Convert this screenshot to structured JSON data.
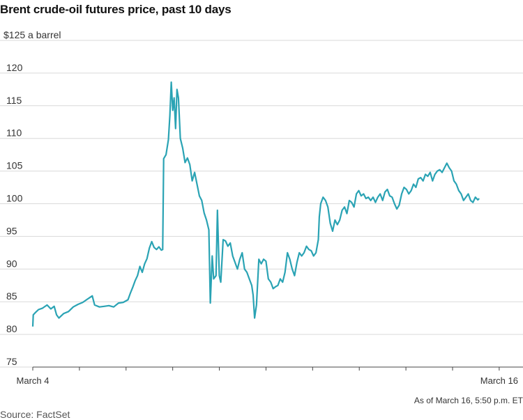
{
  "chart_data": {
    "type": "line",
    "title": "Brent crude-oil futures price, past 10 days",
    "ylabel": "$125 a barrel",
    "ylim": [
      75,
      125
    ],
    "yticks": [
      75,
      80,
      85,
      90,
      95,
      100,
      105,
      110,
      115,
      120
    ],
    "xlim": [
      0,
      10.3
    ],
    "xtick_labels": [
      {
        "x": 0,
        "label": "March 4"
      },
      {
        "x": 9.8,
        "label": "March 16"
      }
    ],
    "grid": true,
    "colors": {
      "line": "#2aa3b4",
      "grid": "#d9d9d9"
    },
    "series": [
      {
        "points": [
          [
            0.0,
            81.2
          ],
          [
            0.01,
            83.0
          ],
          [
            0.05,
            83.3
          ],
          [
            0.12,
            83.8
          ],
          [
            0.2,
            84.0
          ],
          [
            0.3,
            84.5
          ],
          [
            0.38,
            83.9
          ],
          [
            0.45,
            84.3
          ],
          [
            0.5,
            83.0
          ],
          [
            0.55,
            82.5
          ],
          [
            0.65,
            83.2
          ],
          [
            0.75,
            83.5
          ],
          [
            0.85,
            84.2
          ],
          [
            0.95,
            84.6
          ],
          [
            1.05,
            84.9
          ],
          [
            1.15,
            85.4
          ],
          [
            1.25,
            85.9
          ],
          [
            1.3,
            84.5
          ],
          [
            1.4,
            84.2
          ],
          [
            1.5,
            84.3
          ],
          [
            1.6,
            84.4
          ],
          [
            1.7,
            84.2
          ],
          [
            1.8,
            84.8
          ],
          [
            1.9,
            84.9
          ],
          [
            2.0,
            85.3
          ],
          [
            2.05,
            86.3
          ],
          [
            2.1,
            87.2
          ],
          [
            2.15,
            88.2
          ],
          [
            2.2,
            89.0
          ],
          [
            2.25,
            90.4
          ],
          [
            2.3,
            89.5
          ],
          [
            2.35,
            90.8
          ],
          [
            2.4,
            91.6
          ],
          [
            2.45,
            93.2
          ],
          [
            2.5,
            94.2
          ],
          [
            2.55,
            93.3
          ],
          [
            2.6,
            93.0
          ],
          [
            2.65,
            93.4
          ],
          [
            2.7,
            92.9
          ],
          [
            2.73,
            93.0
          ],
          [
            2.75,
            106.9
          ],
          [
            2.8,
            107.5
          ],
          [
            2.85,
            109.8
          ],
          [
            2.88,
            113.5
          ],
          [
            2.91,
            118.6
          ],
          [
            2.94,
            114.3
          ],
          [
            2.97,
            116.2
          ],
          [
            3.0,
            111.5
          ],
          [
            3.03,
            117.5
          ],
          [
            3.06,
            116.2
          ],
          [
            3.1,
            110.0
          ],
          [
            3.15,
            108.5
          ],
          [
            3.2,
            106.3
          ],
          [
            3.25,
            107.0
          ],
          [
            3.3,
            106.0
          ],
          [
            3.35,
            103.5
          ],
          [
            3.4,
            104.8
          ],
          [
            3.45,
            103.0
          ],
          [
            3.5,
            101.2
          ],
          [
            3.55,
            100.5
          ],
          [
            3.6,
            98.6
          ],
          [
            3.65,
            97.5
          ],
          [
            3.7,
            96.0
          ],
          [
            3.73,
            84.8
          ],
          [
            3.77,
            92.0
          ],
          [
            3.8,
            88.5
          ],
          [
            3.85,
            89.0
          ],
          [
            3.88,
            99.0
          ],
          [
            3.92,
            89.0
          ],
          [
            3.95,
            88.0
          ],
          [
            4.0,
            94.5
          ],
          [
            4.05,
            94.3
          ],
          [
            4.1,
            93.5
          ],
          [
            4.15,
            94.0
          ],
          [
            4.2,
            92.0
          ],
          [
            4.25,
            91.0
          ],
          [
            4.3,
            90.0
          ],
          [
            4.35,
            91.5
          ],
          [
            4.4,
            92.5
          ],
          [
            4.45,
            90.0
          ],
          [
            4.5,
            89.5
          ],
          [
            4.55,
            88.5
          ],
          [
            4.6,
            87.5
          ],
          [
            4.63,
            86.0
          ],
          [
            4.66,
            82.5
          ],
          [
            4.7,
            84.5
          ],
          [
            4.75,
            91.5
          ],
          [
            4.8,
            90.8
          ],
          [
            4.85,
            91.5
          ],
          [
            4.9,
            91.2
          ],
          [
            4.95,
            88.5
          ],
          [
            5.0,
            88.0
          ],
          [
            5.05,
            87.0
          ],
          [
            5.1,
            87.3
          ],
          [
            5.15,
            87.5
          ],
          [
            5.2,
            88.5
          ],
          [
            5.25,
            88.0
          ],
          [
            5.3,
            89.5
          ],
          [
            5.35,
            92.5
          ],
          [
            5.4,
            91.5
          ],
          [
            5.45,
            90.0
          ],
          [
            5.5,
            89.0
          ],
          [
            5.55,
            91.0
          ],
          [
            5.6,
            92.5
          ],
          [
            5.65,
            92.0
          ],
          [
            5.7,
            92.5
          ],
          [
            5.75,
            93.5
          ],
          [
            5.8,
            93.0
          ],
          [
            5.85,
            92.8
          ],
          [
            5.9,
            92.0
          ],
          [
            5.95,
            92.5
          ],
          [
            6.0,
            94.5
          ],
          [
            6.02,
            98.0
          ],
          [
            6.05,
            100.0
          ],
          [
            6.1,
            101.0
          ],
          [
            6.15,
            100.5
          ],
          [
            6.2,
            99.5
          ],
          [
            6.25,
            97.0
          ],
          [
            6.3,
            95.8
          ],
          [
            6.35,
            97.5
          ],
          [
            6.4,
            96.8
          ],
          [
            6.45,
            97.5
          ],
          [
            6.5,
            99.0
          ],
          [
            6.55,
            99.5
          ],
          [
            6.6,
            98.5
          ],
          [
            6.65,
            100.5
          ],
          [
            6.7,
            100.2
          ],
          [
            6.75,
            99.5
          ],
          [
            6.8,
            101.5
          ],
          [
            6.85,
            102.0
          ],
          [
            6.9,
            101.2
          ],
          [
            6.95,
            101.5
          ],
          [
            7.0,
            100.8
          ],
          [
            7.05,
            101.0
          ],
          [
            7.1,
            100.5
          ],
          [
            7.15,
            101.0
          ],
          [
            7.2,
            100.2
          ],
          [
            7.25,
            101.0
          ],
          [
            7.3,
            101.5
          ],
          [
            7.35,
            100.5
          ],
          [
            7.4,
            101.8
          ],
          [
            7.45,
            102.2
          ],
          [
            7.5,
            101.2
          ],
          [
            7.55,
            101.0
          ],
          [
            7.6,
            100.0
          ],
          [
            7.65,
            99.2
          ],
          [
            7.7,
            99.8
          ],
          [
            7.75,
            101.5
          ],
          [
            7.8,
            102.5
          ],
          [
            7.85,
            102.2
          ],
          [
            7.9,
            101.5
          ],
          [
            7.95,
            102.0
          ],
          [
            8.0,
            103.0
          ],
          [
            8.05,
            102.5
          ],
          [
            8.1,
            103.8
          ],
          [
            8.15,
            104.0
          ],
          [
            8.2,
            103.5
          ],
          [
            8.25,
            104.5
          ],
          [
            8.3,
            104.2
          ],
          [
            8.35,
            104.8
          ],
          [
            8.4,
            103.5
          ],
          [
            8.45,
            104.5
          ],
          [
            8.5,
            105.0
          ],
          [
            8.55,
            105.2
          ],
          [
            8.6,
            104.8
          ],
          [
            8.65,
            105.5
          ],
          [
            8.7,
            106.2
          ],
          [
            8.75,
            105.5
          ],
          [
            8.8,
            105.0
          ],
          [
            8.85,
            103.5
          ],
          [
            8.9,
            103.0
          ],
          [
            8.95,
            102.0
          ],
          [
            9.0,
            101.5
          ],
          [
            9.05,
            100.5
          ],
          [
            9.1,
            101.0
          ],
          [
            9.15,
            101.5
          ],
          [
            9.2,
            100.5
          ],
          [
            9.25,
            100.2
          ],
          [
            9.3,
            101.0
          ],
          [
            9.35,
            100.6
          ],
          [
            9.38,
            100.8
          ]
        ]
      }
    ],
    "note": "As of March 16, 5:50 p.m. ET",
    "source": "Source: FactSet"
  }
}
